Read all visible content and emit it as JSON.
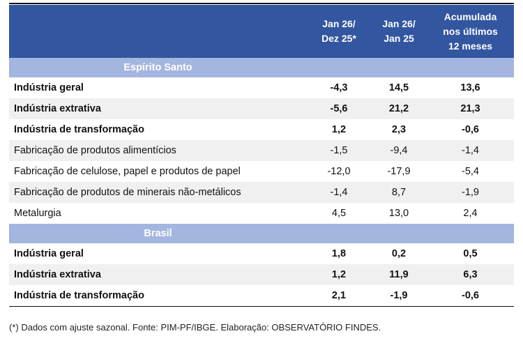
{
  "header": {
    "col0": "",
    "col1": [
      "Jan 26/",
      "Dez 25*"
    ],
    "col2": [
      "Jan 26/",
      "Jan 25"
    ],
    "col3": [
      "Acumulada",
      "nos últimos",
      "12 meses"
    ]
  },
  "sections": [
    {
      "title": "Espírito Santo",
      "rows": [
        {
          "label": "Indústria geral",
          "bold": true,
          "values": [
            "-4,3",
            "14,5",
            "13,6"
          ]
        },
        {
          "label": "Indústria extrativa",
          "bold": true,
          "values": [
            "-5,6",
            "21,2",
            "21,3"
          ]
        },
        {
          "label": "Indústria de transformação",
          "bold": true,
          "values": [
            "1,2",
            "2,3",
            "-0,6"
          ]
        },
        {
          "label": "Fabricação de produtos alimentícios",
          "bold": false,
          "values": [
            "-1,5",
            "-9,4",
            "-1,4"
          ]
        },
        {
          "label": "Fabricação de celulose, papel e produtos de papel",
          "bold": false,
          "values": [
            "-12,0",
            "-17,9",
            "-5,4"
          ]
        },
        {
          "label": "Fabricação de produtos de minerais não-metálicos",
          "bold": false,
          "values": [
            "-1,4",
            "8,7",
            "-1,9"
          ]
        },
        {
          "label": "Metalurgia",
          "bold": false,
          "values": [
            "4,5",
            "13,0",
            "2,4"
          ]
        }
      ]
    },
    {
      "title": "Brasil",
      "rows": [
        {
          "label": "Indústria geral",
          "bold": true,
          "values": [
            "1,8",
            "0,2",
            "0,5"
          ]
        },
        {
          "label": "Indústria extrativa",
          "bold": true,
          "values": [
            "1,2",
            "11,9",
            "6,3"
          ]
        },
        {
          "label": "Indústria de transformação",
          "bold": true,
          "values": [
            "2,1",
            "-1,9",
            "-0,6"
          ]
        }
      ]
    }
  ],
  "footnote": "(*) Dados com ajuste sazonal. Fonte: PIM-PF/IBGE. Elaboração: OBSERVATÓRIO FINDES.",
  "colors": {
    "header": "#3356a0",
    "band": "#a4b5e0",
    "stripe": "#f0f0f0"
  }
}
